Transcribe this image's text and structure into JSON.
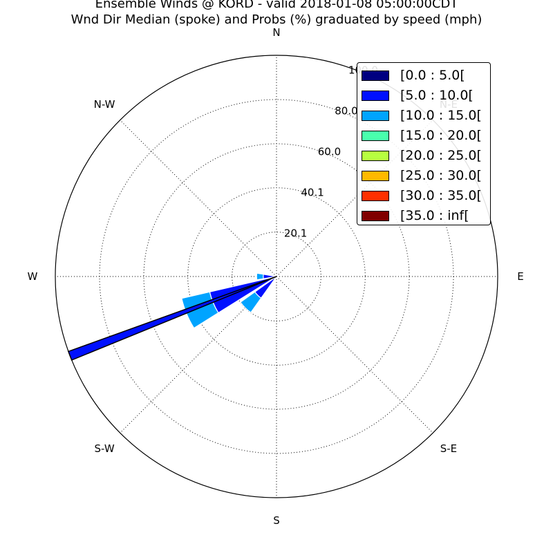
{
  "title": {
    "line1": "Ensemble Winds @ KORD - valid 2018-01-08 05:00:00CDT",
    "line2": "Wnd Dir Median (spoke) and Probs (%) graduated by speed (mph)"
  },
  "colors": {
    "axis": "#000000",
    "grid": "#000000",
    "bar_edge": "#ffffff",
    "spoke_edge": "#000000"
  },
  "chart_data": {
    "type": "windrose",
    "title": "Ensemble Winds @ KORD - valid 2018-01-08 05:00:00CDT",
    "subtitle": "Wnd Dir Median (spoke) and Probs (%) graduated by speed (mph)",
    "direction_labels": [
      {
        "name": "N",
        "deg": 0
      },
      {
        "name": "N-E",
        "deg": 45
      },
      {
        "name": "E",
        "deg": 90
      },
      {
        "name": "S-E",
        "deg": 135
      },
      {
        "name": "S",
        "deg": 180
      },
      {
        "name": "S-W",
        "deg": 225
      },
      {
        "name": "W",
        "deg": 270
      },
      {
        "name": "N-W",
        "deg": 315
      }
    ],
    "radial_ticks": [
      "20.1",
      "40.1",
      "60.0",
      "80.0",
      "100.0"
    ],
    "radial_tick_values": [
      20.1,
      40.1,
      60.0,
      80.0,
      100.0
    ],
    "rlim": [
      0,
      100.0
    ],
    "grid": true,
    "legend_position": "top-right",
    "speed_bins": [
      {
        "label": "[0.0 : 5.0[",
        "color": "#000080"
      },
      {
        "label": "[5.0 : 10.0[",
        "color": "#0010ff"
      },
      {
        "label": "[10.0 : 15.0[",
        "color": "#00a4ff"
      },
      {
        "label": "[15.0 : 20.0[",
        "color": "#49ffad"
      },
      {
        "label": "[20.0 : 25.0[",
        "color": "#b7ff40"
      },
      {
        "label": "[25.0 : 30.0[",
        "color": "#ffb900"
      },
      {
        "label": "[30.0 : 35.0[",
        "color": "#ff3000"
      },
      {
        "label": "[35.0 : inf[",
        "color": "#800000"
      }
    ],
    "sectors": [
      {
        "direction_deg": 225,
        "values": [
          0,
          12,
          8,
          0,
          0,
          0,
          0,
          0
        ]
      },
      {
        "direction_deg": 247.5,
        "values": [
          0,
          31,
          13,
          0,
          0,
          0,
          0,
          0
        ]
      },
      {
        "direction_deg": 270,
        "values": [
          0,
          6,
          3,
          0,
          0,
          0,
          0,
          0
        ]
      }
    ],
    "median_spoke": {
      "direction_deg": 249,
      "value": 100.0,
      "bin_index": 1
    }
  }
}
